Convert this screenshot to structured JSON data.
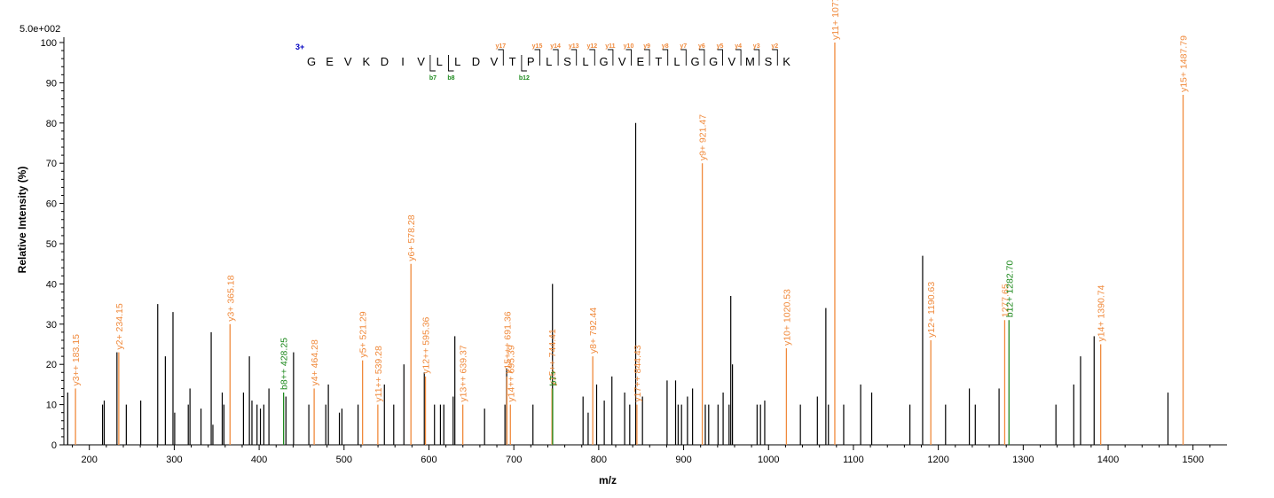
{
  "chart_data": {
    "type": "bar",
    "scale_label": "5.0e+002",
    "xlabel": "m/z",
    "ylabel": "Relative   Intensity (%)",
    "xlim": [
      170,
      1540
    ],
    "ylim": [
      0,
      100
    ],
    "xticks": [
      200,
      300,
      400,
      500,
      600,
      700,
      800,
      900,
      1000,
      1100,
      1200,
      1300,
      1400,
      1500
    ],
    "yticks": [
      0,
      10,
      20,
      30,
      40,
      50,
      60,
      70,
      80,
      90,
      100
    ],
    "colors": {
      "unassigned": "#000000",
      "y_ion": "#F08A3C",
      "b_ion": "#1E8A1E",
      "charge": "#0000C0"
    },
    "peptide": {
      "charge": "3+",
      "sequence": [
        "G",
        "E",
        "V",
        "K",
        "D",
        "I",
        "V",
        "L",
        "L",
        "D",
        "V",
        "T",
        "P",
        "L",
        "S",
        "L",
        "G",
        "V",
        "E",
        "T",
        "L",
        "G",
        "G",
        "V",
        "M",
        "S",
        "K"
      ],
      "y_labels": [
        {
          "residue": 10,
          "label": "y17"
        },
        {
          "residue": 12,
          "label": "y15"
        },
        {
          "residue": 13,
          "label": "y14"
        },
        {
          "residue": 14,
          "label": "y13"
        },
        {
          "residue": 15,
          "label": "y12"
        },
        {
          "residue": 16,
          "label": "y11"
        },
        {
          "residue": 17,
          "label": "y10"
        },
        {
          "residue": 18,
          "label": "y9"
        },
        {
          "residue": 19,
          "label": "y8"
        },
        {
          "residue": 20,
          "label": "y7"
        },
        {
          "residue": 21,
          "label": "y6"
        },
        {
          "residue": 22,
          "label": "y5"
        },
        {
          "residue": 23,
          "label": "y4"
        },
        {
          "residue": 24,
          "label": "y3"
        },
        {
          "residue": 25,
          "label": "y2"
        }
      ],
      "b_labels": [
        {
          "residue": 6,
          "label": "b7"
        },
        {
          "residue": 7,
          "label": "b8"
        },
        {
          "residue": 11,
          "label": "b12"
        }
      ]
    },
    "annotated_peaks": [
      {
        "mz": 183.15,
        "intensity": 14,
        "ion": "y",
        "label": "y3++ 183.15"
      },
      {
        "mz": 234.15,
        "intensity": 23,
        "ion": "y",
        "label": "y2+ 234.15"
      },
      {
        "mz": 365.18,
        "intensity": 30,
        "ion": "y",
        "label": "y3+ 365.18"
      },
      {
        "mz": 428.25,
        "intensity": 13,
        "ion": "b",
        "label": "b8++ 428.25"
      },
      {
        "mz": 464.28,
        "intensity": 14,
        "ion": "y",
        "label": "y4+ 464.28"
      },
      {
        "mz": 521.29,
        "intensity": 21,
        "ion": "y",
        "label": "y5+ 521.29"
      },
      {
        "mz": 539.28,
        "intensity": 10,
        "ion": "y",
        "label": "y11++ 539.28"
      },
      {
        "mz": 578.28,
        "intensity": 45,
        "ion": "y",
        "label": "y6+ 578.28"
      },
      {
        "mz": 595.36,
        "intensity": 17,
        "ion": "y",
        "label": "y12++ 595.36"
      },
      {
        "mz": 639.37,
        "intensity": 10,
        "ion": "y",
        "label": "y13++ 639.37"
      },
      {
        "mz": 691.36,
        "intensity": 17,
        "ion": "y",
        "label": "y15+++ 691.36"
      },
      {
        "mz": 695.39,
        "intensity": 10,
        "ion": "y",
        "label": "y14++ 695.39"
      },
      {
        "mz": 744.41,
        "intensity": 14,
        "ion": "y",
        "label": "y15++ 744.41"
      },
      {
        "mz": 745.2,
        "intensity": 14,
        "ion": "b",
        "label": "b7+"
      },
      {
        "mz": 792.44,
        "intensity": 22,
        "ion": "y",
        "label": "y8+ 792.44"
      },
      {
        "mz": 844.43,
        "intensity": 10,
        "ion": "y",
        "label": "y17++ 844.43"
      },
      {
        "mz": 921.47,
        "intensity": 70,
        "ion": "y",
        "label": "y9+ 921.47"
      },
      {
        "mz": 1020.53,
        "intensity": 24,
        "ion": "y",
        "label": "y10+ 1020.53"
      },
      {
        "mz": 1077.55,
        "intensity": 100,
        "ion": "y",
        "label": "y11+ 1077.55"
      },
      {
        "mz": 1190.63,
        "intensity": 26,
        "ion": "y",
        "label": "y12+ 1190.63"
      },
      {
        "mz": 1277.65,
        "intensity": 31,
        "ion": "y",
        "label": "1277.65"
      },
      {
        "mz": 1282.7,
        "intensity": 31,
        "ion": "b",
        "label": "b12+ 1282.70"
      },
      {
        "mz": 1390.74,
        "intensity": 25,
        "ion": "y",
        "label": "y14+ 1390.74"
      },
      {
        "mz": 1487.79,
        "intensity": 87,
        "ion": "y",
        "label": "y15+ 1487.79"
      }
    ],
    "unassigned_peaks": [
      [
        174,
        13
      ],
      [
        215,
        10
      ],
      [
        217,
        11
      ],
      [
        232,
        23
      ],
      [
        243,
        10
      ],
      [
        260,
        11
      ],
      [
        280,
        35
      ],
      [
        289,
        22
      ],
      [
        298,
        33
      ],
      [
        300,
        8
      ],
      [
        316,
        10
      ],
      [
        318,
        14
      ],
      [
        331,
        9
      ],
      [
        343,
        28
      ],
      [
        345,
        5
      ],
      [
        356,
        13
      ],
      [
        358,
        10
      ],
      [
        381,
        13
      ],
      [
        388,
        22
      ],
      [
        391,
        11
      ],
      [
        397,
        10
      ],
      [
        401,
        9
      ],
      [
        405,
        10
      ],
      [
        411,
        14
      ],
      [
        431,
        12
      ],
      [
        440,
        23
      ],
      [
        458,
        10
      ],
      [
        478,
        10
      ],
      [
        481,
        15
      ],
      [
        494,
        8
      ],
      [
        497,
        9
      ],
      [
        516,
        10
      ],
      [
        547,
        15
      ],
      [
        558,
        10
      ],
      [
        570,
        20
      ],
      [
        594,
        18
      ],
      [
        606,
        10
      ],
      [
        613,
        10
      ],
      [
        617,
        10
      ],
      [
        628,
        12
      ],
      [
        630,
        27
      ],
      [
        665,
        9
      ],
      [
        689,
        10
      ],
      [
        691,
        19
      ],
      [
        722,
        10
      ],
      [
        745,
        40
      ],
      [
        781,
        12
      ],
      [
        787,
        8
      ],
      [
        797,
        15
      ],
      [
        806,
        11
      ],
      [
        815,
        17
      ],
      [
        830,
        13
      ],
      [
        836,
        10
      ],
      [
        843,
        80
      ],
      [
        851,
        12
      ],
      [
        880,
        16
      ],
      [
        890,
        16
      ],
      [
        893,
        10
      ],
      [
        897,
        10
      ],
      [
        904,
        12
      ],
      [
        910,
        14
      ],
      [
        925,
        10
      ],
      [
        929,
        10
      ],
      [
        940,
        10
      ],
      [
        946,
        13
      ],
      [
        953,
        10
      ],
      [
        955,
        37
      ],
      [
        957,
        20
      ],
      [
        986,
        10
      ],
      [
        990,
        10
      ],
      [
        995,
        11
      ],
      [
        1037,
        10
      ],
      [
        1057,
        12
      ],
      [
        1067,
        34
      ],
      [
        1070,
        10
      ],
      [
        1088,
        10
      ],
      [
        1108,
        15
      ],
      [
        1121,
        13
      ],
      [
        1166,
        10
      ],
      [
        1181,
        47
      ],
      [
        1208,
        10
      ],
      [
        1236,
        14
      ],
      [
        1243,
        10
      ],
      [
        1271,
        14
      ],
      [
        1338,
        10
      ],
      [
        1359,
        15
      ],
      [
        1367,
        22
      ],
      [
        1383,
        27
      ],
      [
        1470,
        13
      ]
    ]
  }
}
